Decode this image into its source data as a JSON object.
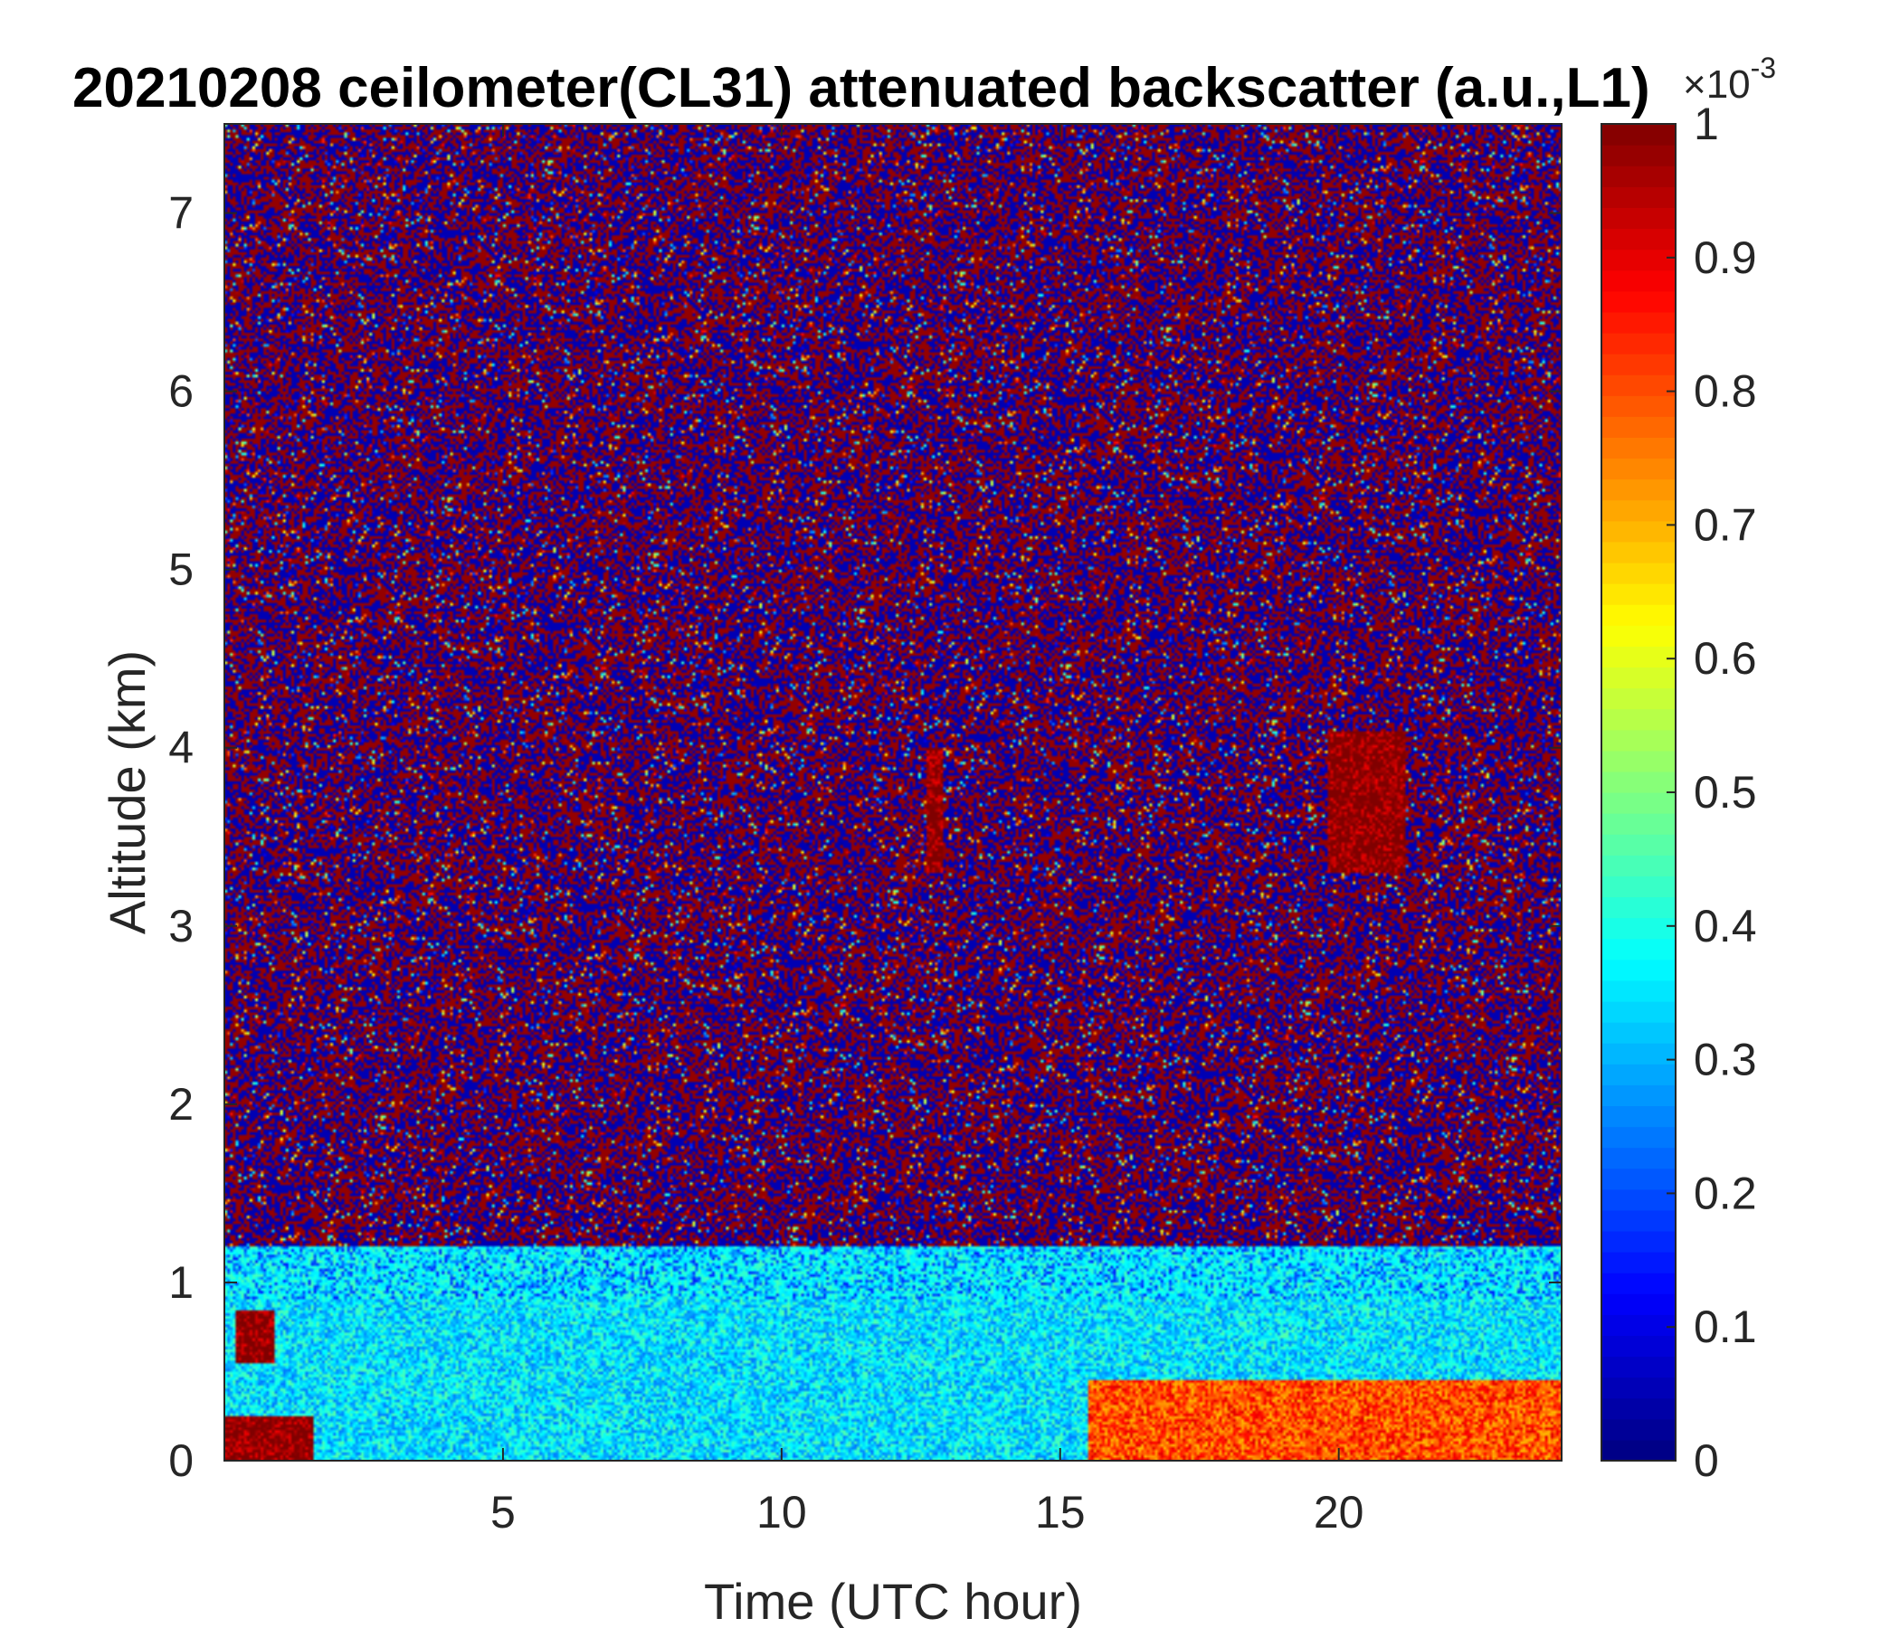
{
  "chart_data": {
    "type": "heatmap",
    "title": "20210208 ceilometer(CL31) attenuated backscatter (a.u.,L1)",
    "xlabel": "Time (UTC hour)",
    "ylabel": "Altitude (km)",
    "xlim": [
      0,
      24
    ],
    "ylim": [
      0,
      7.5
    ],
    "x_ticks": [
      5,
      10,
      15,
      20
    ],
    "x_tick_labels": [
      "5",
      "10",
      "15",
      "20"
    ],
    "y_ticks": [
      0,
      1,
      2,
      3,
      4,
      5,
      6,
      7
    ],
    "y_tick_labels": [
      "0",
      "1",
      "2",
      "3",
      "4",
      "5",
      "6",
      "7"
    ],
    "colorbar": {
      "colormap": "jet",
      "range": [
        0,
        1
      ],
      "ticks": [
        0,
        0.1,
        0.2,
        0.3,
        0.4,
        0.5,
        0.6,
        0.7,
        0.8,
        0.9,
        1
      ],
      "tick_labels": [
        "0",
        "0.1",
        "0.2",
        "0.3",
        "0.4",
        "0.5",
        "0.6",
        "0.7",
        "0.8",
        "0.9",
        "1"
      ],
      "multiplier_base": "×10",
      "multiplier_exponent": "-3"
    },
    "features": [
      {
        "kind": "boundary-layer",
        "x": [
          0,
          24
        ],
        "y": [
          0,
          0.9
        ],
        "value": 0.35
      },
      {
        "kind": "aerosol",
        "x": [
          15.5,
          24
        ],
        "y": [
          0,
          0.45
        ],
        "value": 0.8
      },
      {
        "kind": "high-values",
        "x": [
          0,
          1.6
        ],
        "y": [
          0,
          0.25
        ],
        "value": 1.0
      },
      {
        "kind": "high-values",
        "x": [
          0.2,
          0.9
        ],
        "y": [
          0.55,
          0.85
        ],
        "value": 1.0
      },
      {
        "kind": "cloud",
        "x": [
          19.8,
          21.2
        ],
        "y": [
          3.3,
          4.1
        ],
        "value": 1.0
      },
      {
        "kind": "cloud",
        "x": [
          12.6,
          12.9
        ],
        "y": [
          3.3,
          4.0
        ],
        "value": 1.0
      },
      {
        "kind": "noise-region",
        "x": [
          0,
          24
        ],
        "y": [
          1.2,
          7.5
        ],
        "value": "noise"
      }
    ]
  }
}
